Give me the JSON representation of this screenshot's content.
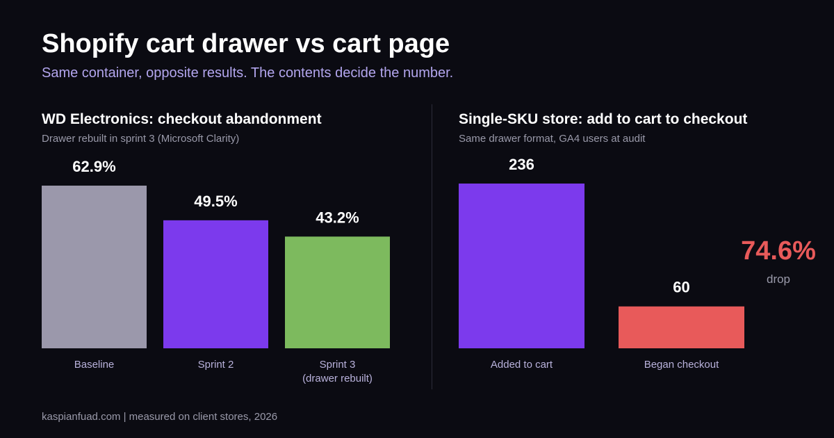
{
  "header": {
    "title": "Shopify cart drawer vs cart page",
    "subtitle": "Same container, opposite results. The contents decide the number."
  },
  "chart_data": [
    {
      "type": "bar",
      "title": "WD Electronics: checkout abandonment",
      "subtitle": "Drawer rebuilt in sprint 3 (Microsoft Clarity)",
      "categories": [
        "Baseline",
        "Sprint 2",
        "Sprint 3\n(drawer rebuilt)"
      ],
      "values": [
        62.9,
        49.5,
        43.2
      ],
      "value_labels": [
        "62.9%",
        "49.5%",
        "43.2%"
      ],
      "colors": [
        "#9b98ab",
        "#7c3aed",
        "#7dba5e"
      ],
      "ylim": [
        0,
        62.9
      ],
      "grid": false
    },
    {
      "type": "bar",
      "title": "Single-SKU store: add to cart to checkout",
      "subtitle": "Same drawer format, GA4 users at audit",
      "categories": [
        "Added to cart",
        "Began checkout"
      ],
      "values": [
        236,
        60
      ],
      "value_labels": [
        "236",
        "60"
      ],
      "colors": [
        "#7c3aed",
        "#e85a5a"
      ],
      "ylim": [
        0,
        236
      ],
      "grid": false,
      "annotation": {
        "value": "74.6%",
        "label": "drop",
        "color": "#e85a5a"
      }
    }
  ],
  "footer": "kaspianfuad.com  |  measured on client stores, 2026"
}
